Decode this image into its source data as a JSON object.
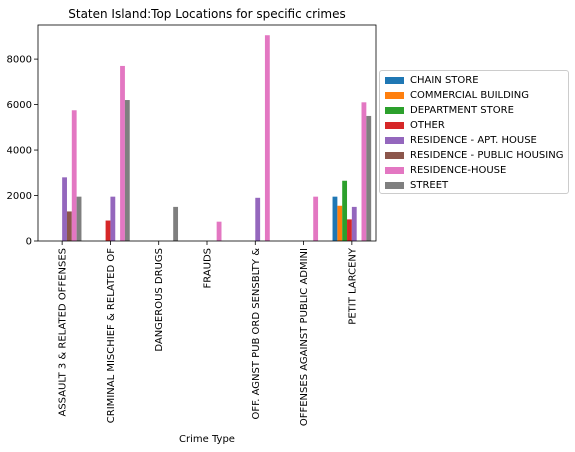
{
  "chart_data": {
    "type": "bar",
    "title": "Staten Island:Top Locations for specific crimes",
    "xlabel": "Crime Type",
    "ylabel": "",
    "ylim": [
      0,
      9500
    ],
    "yticks": [
      0,
      2000,
      4000,
      6000,
      8000
    ],
    "grid": false,
    "legend_position": "right",
    "categories": [
      "ASSAULT 3 & RELATED OFFENSES",
      "CRIMINAL MISCHIEF & RELATED OF",
      "DANGEROUS DRUGS",
      "FRAUDS",
      "OFF. AGNST PUB ORD SENSBLTY &",
      "OFFENSES AGAINST PUBLIC ADMINI",
      "PETIT LARCENY"
    ],
    "series": [
      {
        "name": "CHAIN STORE",
        "color": "#1f77b4",
        "values": [
          0,
          0,
          0,
          0,
          0,
          0,
          1950
        ]
      },
      {
        "name": "COMMERCIAL BUILDING",
        "color": "#ff7f0e",
        "values": [
          0,
          0,
          0,
          0,
          0,
          0,
          1550
        ]
      },
      {
        "name": "DEPARTMENT STORE",
        "color": "#2ca02c",
        "values": [
          0,
          0,
          0,
          0,
          0,
          0,
          2650
        ]
      },
      {
        "name": "OTHER",
        "color": "#d62728",
        "values": [
          0,
          900,
          0,
          0,
          0,
          0,
          950
        ]
      },
      {
        "name": "RESIDENCE - APT. HOUSE",
        "color": "#9467bd",
        "values": [
          2800,
          1950,
          0,
          0,
          1900,
          0,
          1500
        ]
      },
      {
        "name": "RESIDENCE - PUBLIC HOUSING",
        "color": "#8c564b",
        "values": [
          1300,
          0,
          0,
          0,
          0,
          0,
          0
        ]
      },
      {
        "name": "RESIDENCE-HOUSE",
        "color": "#e377c2",
        "values": [
          5750,
          7700,
          0,
          850,
          9050,
          1950,
          6100
        ]
      },
      {
        "name": "STREET",
        "color": "#7f7f7f",
        "values": [
          1950,
          6200,
          1500,
          0,
          0,
          0,
          5500
        ]
      }
    ]
  }
}
